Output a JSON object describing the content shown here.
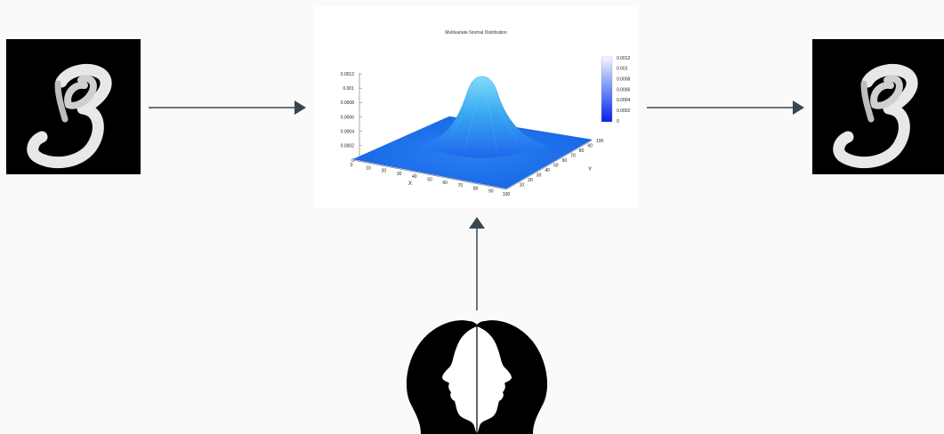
{
  "diagram": {
    "input_image": {
      "depicts": "handwritten digit 3",
      "colors": {
        "background": "#000000",
        "stroke": "#ffffff"
      }
    },
    "output_image": {
      "depicts": "handwritten digit 3",
      "colors": {
        "background": "#000000",
        "stroke": "#ffffff"
      }
    },
    "human_icon": {
      "depicts": "two facing head silhouettes",
      "color": "#000000"
    },
    "arrow_color": "#37474f"
  },
  "chart_data": {
    "type": "surface",
    "title": "Multivariate Normal Distribution",
    "xlabel": "X",
    "ylabel": "Y",
    "xlim": [
      0,
      100
    ],
    "ylim": [
      0,
      100
    ],
    "zlim": [
      0,
      0.0012
    ],
    "x_ticks": [
      "0",
      "10",
      "20",
      "30",
      "40",
      "50",
      "60",
      "70",
      "80",
      "90",
      "100"
    ],
    "y_ticks": [
      "10",
      "20",
      "30",
      "40",
      "50",
      "60",
      "70",
      "80",
      "90",
      "100"
    ],
    "z_ticks": [
      "0",
      "0.0002",
      "0.0004",
      "0.0006",
      "0.0008",
      "0.001",
      "0.0012"
    ],
    "colorbar_ticks": [
      "0.0012",
      "0.001",
      "0.0008",
      "0.0006",
      "0.0004",
      "0.0002",
      "0"
    ],
    "peak": {
      "x": 50,
      "y": 50,
      "z": 0.0012
    },
    "colormap": {
      "low": "#0a1fe8",
      "high": "#f4f6ff"
    }
  }
}
